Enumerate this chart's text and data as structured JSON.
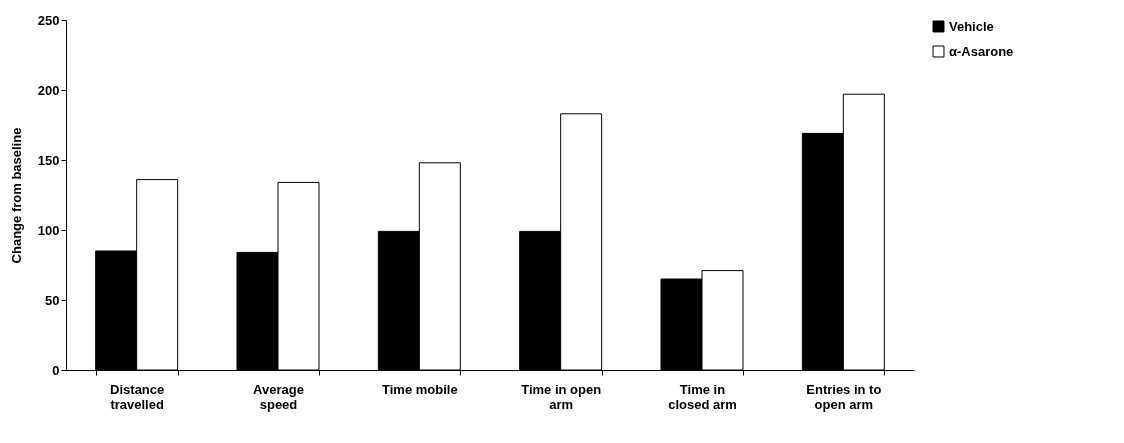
{
  "chart_data": {
    "type": "bar",
    "ylabel": "Change from baseline",
    "categories": [
      "Distance travelled",
      "Average speed",
      "Time mobile",
      "Time in open arm",
      "Time in closed arm",
      "Entries in to open arm"
    ],
    "series": [
      {
        "name": "Vehicle",
        "color": "#000000",
        "values": [
          85,
          84,
          99,
          99,
          65,
          169
        ]
      },
      {
        "name": "α-Asarone",
        "color": "#ffffff",
        "values": [
          136,
          134,
          148,
          183,
          71,
          197
        ]
      }
    ],
    "ylim": [
      0,
      250
    ],
    "yticks": [
      0,
      50,
      100,
      150,
      200,
      250
    ],
    "legend": "right"
  }
}
